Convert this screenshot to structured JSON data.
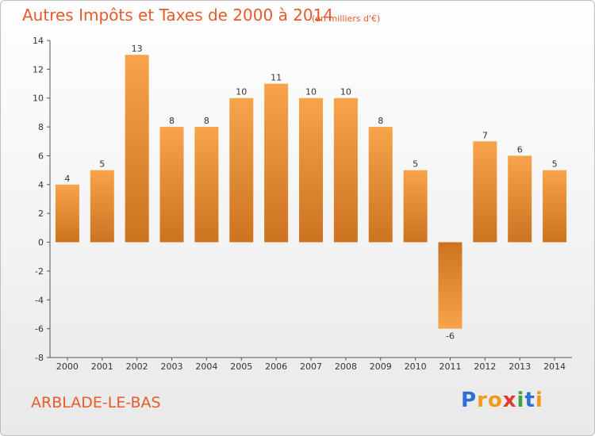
{
  "header": {
    "title": "Autres Impôts et Taxes de 2000 à 2014",
    "subtitle": "(en milliers d'€)"
  },
  "footer": {
    "commune": "ARBLADE-LE-BAS",
    "logo_letters": [
      "P",
      "r",
      "o",
      "x",
      "i",
      "t",
      "i"
    ],
    "logo_colors": [
      "#2e6fd6",
      "#f29a1e",
      "#f29a1e",
      "#e03a2f",
      "#3aa53a",
      "#2e6fd6",
      "#f29a1e"
    ]
  },
  "chart_data": {
    "type": "bar",
    "categories": [
      "2000",
      "2001",
      "2002",
      "2003",
      "2004",
      "2005",
      "2006",
      "2007",
      "2008",
      "2009",
      "2010",
      "2011",
      "2012",
      "2013",
      "2014"
    ],
    "values": [
      4,
      5,
      13,
      8,
      8,
      10,
      11,
      10,
      10,
      8,
      5,
      -6,
      7,
      6,
      5
    ],
    "title": "Autres Impôts et Taxes de 2000 à 2014",
    "xlabel": "",
    "ylabel": "",
    "ylim": [
      -8,
      14
    ],
    "yticks": [
      -8,
      -6,
      -4,
      -2,
      0,
      2,
      4,
      6,
      8,
      10,
      12,
      14
    ],
    "grid": false,
    "legend": "none",
    "bar_color_light": "#f7a44a",
    "bar_color_dark": "#cc7320",
    "axis_color": "#555555"
  }
}
